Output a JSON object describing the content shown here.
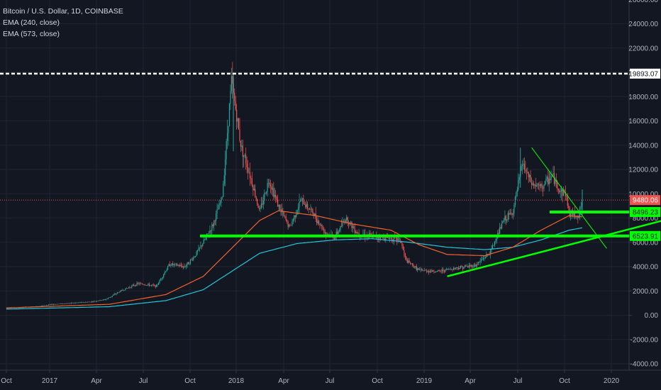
{
  "legend": {
    "symbol": "Bitcoin / U.S. Dollar, 1D, COINBASE",
    "ema1": "EMA (240, close)",
    "ema2": "EMA (573, close)"
  },
  "colors": {
    "background": "#131722",
    "grid": "#1f2431",
    "up": "#26a69a",
    "down": "#ef5350",
    "ema1": "#f2622b",
    "ema2": "#26c6da",
    "hline": "#00ff00",
    "resistance": "#ffffff",
    "current": "#ef5350"
  },
  "chart_data": {
    "type": "candlestick",
    "x_ticks": [
      "Oct",
      "2017",
      "Apr",
      "Jul",
      "Oct",
      "2018",
      "Apr",
      "Jul",
      "Oct",
      "2019",
      "Apr",
      "Jul",
      "Oct",
      "2020"
    ],
    "y_ticks": [
      "26000.00",
      "24000.00",
      "22000.00",
      "20000.00",
      "18000.00",
      "16000.00",
      "14000.00",
      "12000.00",
      "10000.00",
      "8000.00",
      "6000.00",
      "4000.00",
      "2000.00",
      "0.00",
      "-2000.00",
      "-4000.00"
    ],
    "ylim": [
      -4000,
      26000
    ],
    "price_keypoints": [
      [
        2016.75,
        600
      ],
      [
        2016.9,
        700
      ],
      [
        2017.0,
        900
      ],
      [
        2017.1,
        1000
      ],
      [
        2017.2,
        1100
      ],
      [
        2017.28,
        1300
      ],
      [
        2017.36,
        2000
      ],
      [
        2017.45,
        2600
      ],
      [
        2017.55,
        2400
      ],
      [
        2017.62,
        4200
      ],
      [
        2017.7,
        4000
      ],
      [
        2017.75,
        4800
      ],
      [
        2017.8,
        6000
      ],
      [
        2017.85,
        7400
      ],
      [
        2017.9,
        9700
      ],
      [
        2017.95,
        19300
      ],
      [
        2018.0,
        14000
      ],
      [
        2018.05,
        11500
      ],
      [
        2018.1,
        8500
      ],
      [
        2018.15,
        11200
      ],
      [
        2018.2,
        9000
      ],
      [
        2018.26,
        7200
      ],
      [
        2018.32,
        9500
      ],
      [
        2018.38,
        8500
      ],
      [
        2018.45,
        6800
      ],
      [
        2018.5,
        6400
      ],
      [
        2018.56,
        8000
      ],
      [
        2018.62,
        6800
      ],
      [
        2018.7,
        6500
      ],
      [
        2018.78,
        6400
      ],
      [
        2018.85,
        6200
      ],
      [
        2018.88,
        4500
      ],
      [
        2018.95,
        3700
      ],
      [
        2019.05,
        3600
      ],
      [
        2019.15,
        3900
      ],
      [
        2019.25,
        4100
      ],
      [
        2019.33,
        5200
      ],
      [
        2019.4,
        7800
      ],
      [
        2019.45,
        8500
      ],
      [
        2019.5,
        12500
      ],
      [
        2019.55,
        10800
      ],
      [
        2019.6,
        10500
      ],
      [
        2019.66,
        11500
      ],
      [
        2019.7,
        10200
      ],
      [
        2019.73,
        10100
      ],
      [
        2019.75,
        8400
      ],
      [
        2019.8,
        8200
      ],
      [
        2019.82,
        9400
      ]
    ],
    "ema240_keypoints": [
      [
        2016.75,
        600
      ],
      [
        2017.3,
        900
      ],
      [
        2017.6,
        1700
      ],
      [
        2017.8,
        3200
      ],
      [
        2017.95,
        5500
      ],
      [
        2018.1,
        7800
      ],
      [
        2018.2,
        8600
      ],
      [
        2018.4,
        8200
      ],
      [
        2018.6,
        7500
      ],
      [
        2018.8,
        7000
      ],
      [
        2018.95,
        5800
      ],
      [
        2019.1,
        5000
      ],
      [
        2019.3,
        4900
      ],
      [
        2019.45,
        5600
      ],
      [
        2019.6,
        7000
      ],
      [
        2019.75,
        8200
      ],
      [
        2019.82,
        8100
      ]
    ],
    "ema573_keypoints": [
      [
        2016.75,
        500
      ],
      [
        2017.3,
        700
      ],
      [
        2017.6,
        1200
      ],
      [
        2017.8,
        2100
      ],
      [
        2017.95,
        3600
      ],
      [
        2018.1,
        5100
      ],
      [
        2018.3,
        5900
      ],
      [
        2018.5,
        6200
      ],
      [
        2018.7,
        6300
      ],
      [
        2018.9,
        6000
      ],
      [
        2019.1,
        5600
      ],
      [
        2019.3,
        5400
      ],
      [
        2019.45,
        5600
      ],
      [
        2019.6,
        6200
      ],
      [
        2019.75,
        7000
      ],
      [
        2019.82,
        7200
      ]
    ],
    "horizontal_levels": [
      {
        "value": 19893.07,
        "label": "19893.07",
        "style": "dashed",
        "color": "#ffffff"
      },
      {
        "value": 9480.06,
        "label": "9480.06",
        "style": "dotted",
        "color": "#ef5350"
      },
      {
        "value": 8496.23,
        "label": "8496.23",
        "style": "solid",
        "color": "#00ff00"
      },
      {
        "value": 6523.91,
        "label": "6523.91",
        "style": "solid",
        "color": "#00ff00"
      }
    ],
    "trendlines": [
      {
        "from": [
          2019.55,
          13800
        ],
        "to": [
          2019.95,
          5500
        ],
        "color": "#00ff00",
        "width": 1
      },
      {
        "from": [
          2019.1,
          3200
        ],
        "to": [
          2020.3,
          8000
        ],
        "color": "#00ff00",
        "width": 2.5
      }
    ]
  }
}
